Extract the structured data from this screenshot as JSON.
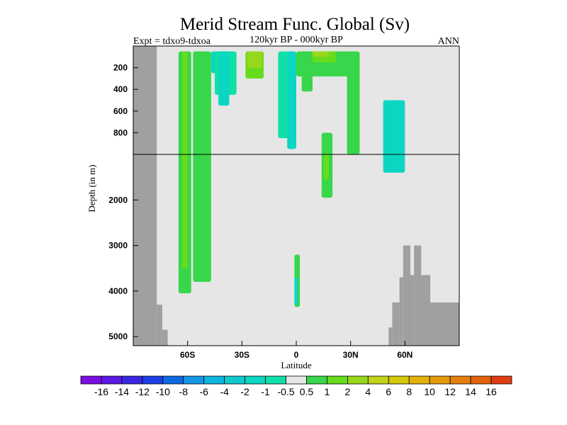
{
  "chart_data": {
    "type": "heatmap",
    "title": "Merid Stream Func. Global (Sv)",
    "left_label": "Expt = tdxo9-tdxoa",
    "center_label": "120kyr BP - 000kyr BP",
    "right_label": "ANN",
    "xlabel": "Latitude",
    "ylabel": "Depth (in m)",
    "x_ticks": [
      {
        "value": -60,
        "label": "60S"
      },
      {
        "value": -30,
        "label": "30S"
      },
      {
        "value": 0,
        "label": "0"
      },
      {
        "value": 30,
        "label": "30N"
      },
      {
        "value": 60,
        "label": "60N"
      }
    ],
    "y_ticks_upper": [
      {
        "value": 200,
        "label": "200"
      },
      {
        "value": 400,
        "label": "400"
      },
      {
        "value": 600,
        "label": "600"
      },
      {
        "value": 800,
        "label": "800"
      }
    ],
    "y_ticks_lower": [
      {
        "value": 2000,
        "label": "2000"
      },
      {
        "value": 3000,
        "label": "3000"
      },
      {
        "value": 4000,
        "label": "4000"
      },
      {
        "value": 5000,
        "label": "5000"
      }
    ],
    "xlim": [
      -90,
      90
    ],
    "upper_depth_range": [
      0,
      1000
    ],
    "lower_depth_range": [
      1000,
      5200
    ],
    "background_value_range": [
      -0.5,
      0.5
    ],
    "colorbar": {
      "colors": [
        "#7b0ee3",
        "#5b17e4",
        "#3a28e0",
        "#1f3fe6",
        "#0e6ae2",
        "#1597e6",
        "#0fb5df",
        "#10c9cf",
        "#0ad6c2",
        "#10e0a8",
        "#e6e6e6",
        "#38d64a",
        "#66dc1c",
        "#98d81c",
        "#c4d21a",
        "#d6c80c",
        "#e3b20a",
        "#e59a0a",
        "#e6800c",
        "#e3620c",
        "#df3e12"
      ],
      "labels": [
        "-16",
        "-14",
        "-12",
        "-10",
        "-8",
        "-6",
        "-4",
        "-2",
        "-1",
        "-0.5",
        "0.5",
        "1",
        "2",
        "4",
        "6",
        "8",
        "10",
        "12",
        "14",
        "16"
      ]
    },
    "bathymetry": [
      {
        "lat0": -90,
        "lat1": -80,
        "depth": 0
      },
      {
        "lat0": -80,
        "lat1": -77,
        "depth": 0
      },
      {
        "lat0": -77,
        "lat1": -74,
        "depth": 4300
      },
      {
        "lat0": -74,
        "lat1": -71,
        "depth": 4850
      },
      {
        "lat0": -71,
        "lat1": -68,
        "depth": 5200
      },
      {
        "lat0": 51,
        "lat1": 53,
        "depth": 4800
      },
      {
        "lat0": 53,
        "lat1": 57,
        "depth": 4250
      },
      {
        "lat0": 57,
        "lat1": 59,
        "depth": 3700
      },
      {
        "lat0": 59,
        "lat1": 63,
        "depth": 3000
      },
      {
        "lat0": 63,
        "lat1": 65,
        "depth": 3650
      },
      {
        "lat0": 65,
        "lat1": 69,
        "depth": 3000
      },
      {
        "lat0": 69,
        "lat1": 74,
        "depth": 3650
      },
      {
        "lat0": 74,
        "lat1": 90,
        "depth": 4250
      }
    ],
    "cells": [
      {
        "lat0": -65,
        "lat1": -58,
        "d0": 50,
        "d1": 4050,
        "value": 1
      },
      {
        "lat0": -63,
        "lat1": -60,
        "d0": 50,
        "d1": 3500,
        "value": 2
      },
      {
        "lat0": -57,
        "lat1": -47,
        "d0": 50,
        "d1": 3800,
        "value": 1
      },
      {
        "lat0": -47,
        "lat1": -35,
        "d0": 50,
        "d1": 250,
        "value": -1
      },
      {
        "lat0": -45,
        "lat1": -33,
        "d0": 50,
        "d1": 450,
        "value": -0.5
      },
      {
        "lat0": -43,
        "lat1": -37,
        "d0": 50,
        "d1": 550,
        "value": -1
      },
      {
        "lat0": -28,
        "lat1": -18,
        "d0": 50,
        "d1": 300,
        "value": 2
      },
      {
        "lat0": -27,
        "lat1": -19,
        "d0": 50,
        "d1": 200,
        "value": 4
      },
      {
        "lat0": -10,
        "lat1": -2,
        "d0": 50,
        "d1": 850,
        "value": -0.5
      },
      {
        "lat0": -5,
        "lat1": 0,
        "d0": 50,
        "d1": 950,
        "value": -1
      },
      {
        "lat0": 0,
        "lat1": 30,
        "d0": 50,
        "d1": 280,
        "value": 1
      },
      {
        "lat0": 4,
        "lat1": 22,
        "d0": 50,
        "d1": 150,
        "value": 2
      },
      {
        "lat0": 7,
        "lat1": 18,
        "d0": 50,
        "d1": 100,
        "value": 4
      },
      {
        "lat0": 3,
        "lat1": 9,
        "d0": 50,
        "d1": 420,
        "value": 1
      },
      {
        "lat0": 14,
        "lat1": 20,
        "d0": 800,
        "d1": 1950,
        "value": 1
      },
      {
        "lat0": 15,
        "lat1": 18,
        "d0": 1000,
        "d1": 1550,
        "value": 2
      },
      {
        "lat0": 28,
        "lat1": 35,
        "d0": 50,
        "d1": 1000,
        "value": 1
      },
      {
        "lat0": 48,
        "lat1": 60,
        "d0": 500,
        "d1": 1400,
        "value": -1
      },
      {
        "lat0": -1,
        "lat1": 2,
        "d0": 3200,
        "d1": 4350,
        "value": 1
      },
      {
        "lat0": -1,
        "lat1": 1,
        "d0": 3700,
        "d1": 4300,
        "value": -1
      }
    ]
  }
}
